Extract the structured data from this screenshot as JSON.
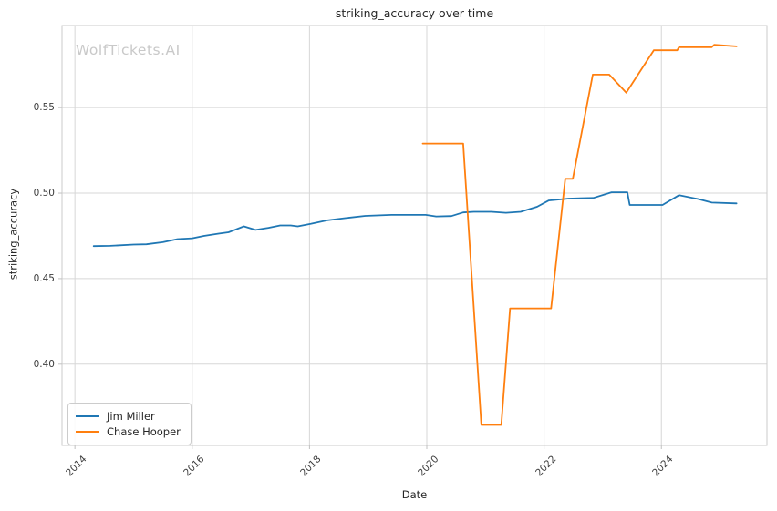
{
  "watermark": "WolfTickets.AI",
  "colors": {
    "grid": "#d7d7d7",
    "spine": "#cbcbcb",
    "tick": "#c0c0c0",
    "title_text": "#262626",
    "tick_text": "#3c3c3c",
    "watermark": "#c9c9c9",
    "background": "#ffffff",
    "series_blue": "#1f77b4",
    "series_orange": "#ff7f0e"
  },
  "chart_data": {
    "type": "line",
    "title": "striking_accuracy over time",
    "xlabel": "Date",
    "ylabel": "striking_accuracy",
    "grid": true,
    "legend_position": "lower-left",
    "xlim": [
      2013.78,
      2025.8
    ],
    "ylim": [
      0.3525,
      0.598
    ],
    "x_ticks": {
      "values": [
        2014,
        2016,
        2018,
        2020,
        2022,
        2024
      ],
      "labels": [
        "2014",
        "2016",
        "2018",
        "2020",
        "2022",
        "2024"
      ],
      "rotation_deg": 45
    },
    "y_ticks": {
      "values": [
        0.4,
        0.45,
        0.5,
        0.55
      ],
      "labels": [
        "0.40",
        "0.45",
        "0.50",
        "0.55"
      ]
    },
    "series": [
      {
        "name": "Jim Miller",
        "color": "#1f77b4",
        "points": [
          [
            2014.32,
            0.469
          ],
          [
            2014.6,
            0.4692
          ],
          [
            2015.0,
            0.4699
          ],
          [
            2015.22,
            0.4701
          ],
          [
            2015.5,
            0.4713
          ],
          [
            2015.75,
            0.4731
          ],
          [
            2016.0,
            0.4736
          ],
          [
            2016.2,
            0.475
          ],
          [
            2016.45,
            0.4763
          ],
          [
            2016.62,
            0.4771
          ],
          [
            2016.88,
            0.4806
          ],
          [
            2017.08,
            0.4785
          ],
          [
            2017.3,
            0.4797
          ],
          [
            2017.5,
            0.4811
          ],
          [
            2017.68,
            0.4811
          ],
          [
            2017.8,
            0.4806
          ],
          [
            2018.02,
            0.482
          ],
          [
            2018.3,
            0.4841
          ],
          [
            2018.62,
            0.4854
          ],
          [
            2018.95,
            0.4867
          ],
          [
            2019.4,
            0.4873
          ],
          [
            2019.98,
            0.4873
          ],
          [
            2020.16,
            0.4864
          ],
          [
            2020.42,
            0.4866
          ],
          [
            2020.62,
            0.4887
          ],
          [
            2020.8,
            0.4891
          ],
          [
            2021.1,
            0.4891
          ],
          [
            2021.35,
            0.4885
          ],
          [
            2021.6,
            0.4891
          ],
          [
            2021.88,
            0.492
          ],
          [
            2022.08,
            0.4957
          ],
          [
            2022.42,
            0.4968
          ],
          [
            2022.84,
            0.4972
          ],
          [
            2023.15,
            0.5005
          ],
          [
            2023.42,
            0.5005
          ],
          [
            2023.46,
            0.4931
          ],
          [
            2024.02,
            0.4931
          ],
          [
            2024.3,
            0.4988
          ],
          [
            2024.62,
            0.4966
          ],
          [
            2024.86,
            0.4945
          ],
          [
            2025.28,
            0.494
          ]
        ]
      },
      {
        "name": "Chase Hooper",
        "color": "#ff7f0e",
        "points": [
          [
            2019.93,
            0.529
          ],
          [
            2020.62,
            0.529
          ],
          [
            2020.93,
            0.3645
          ],
          [
            2021.27,
            0.3645
          ],
          [
            2021.42,
            0.4326
          ],
          [
            2022.12,
            0.4326
          ],
          [
            2022.36,
            0.5084
          ],
          [
            2022.49,
            0.5084
          ],
          [
            2022.83,
            0.5693
          ],
          [
            2023.11,
            0.5693
          ],
          [
            2023.4,
            0.5587
          ],
          [
            2023.87,
            0.5835
          ],
          [
            2024.27,
            0.5835
          ],
          [
            2024.3,
            0.5853
          ],
          [
            2024.86,
            0.5853
          ],
          [
            2024.9,
            0.5867
          ],
          [
            2025.28,
            0.5858
          ]
        ]
      }
    ]
  }
}
